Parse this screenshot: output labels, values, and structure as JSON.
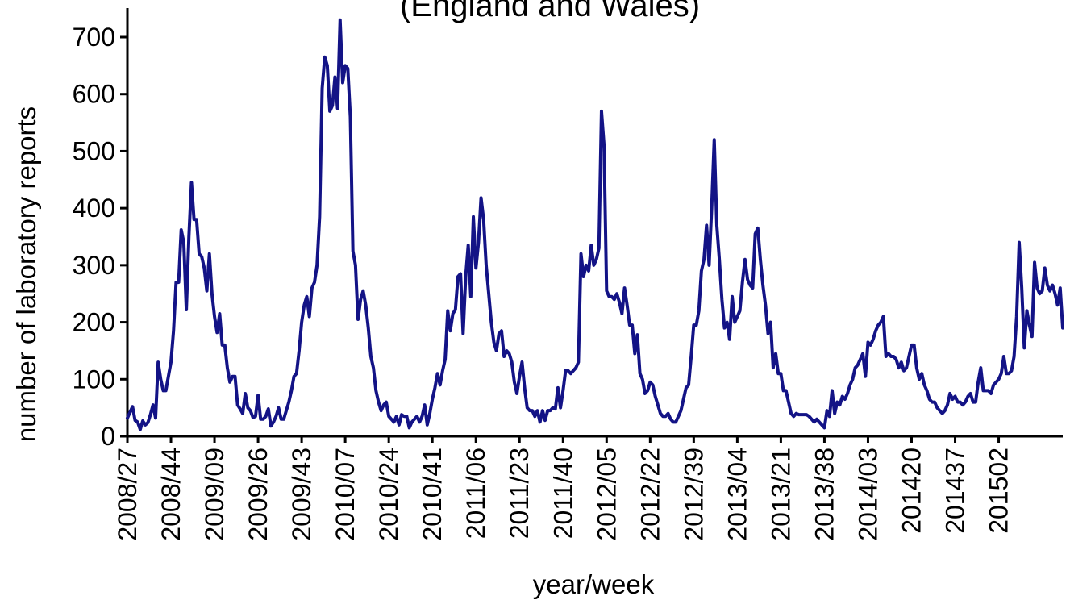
{
  "chart_data": {
    "type": "line",
    "title": "(England and Wales)",
    "xlabel": "year/week",
    "ylabel": "number of laboratory reports",
    "ylim": [
      0,
      740
    ],
    "yticks": [
      0,
      100,
      200,
      300,
      400,
      500,
      600,
      700
    ],
    "xtick_labels": [
      "2008/27",
      "2008/44",
      "2009/09",
      "2009/26",
      "2009/43",
      "2010/07",
      "2010/24",
      "2010/41",
      "2011/06",
      "2011/23",
      "2011/40",
      "2012/05",
      "2012/22",
      "2012/39",
      "2013/04",
      "2013/21",
      "2013/38",
      "2014/03",
      "201420",
      "201437",
      "201502"
    ],
    "week_interval_between_ticks": 17,
    "grid": false,
    "legend": "none",
    "line_color": "#131386",
    "series": [
      {
        "values": [
          32,
          42,
          52,
          28,
          25,
          12,
          27,
          20,
          24,
          38,
          55,
          32,
          130,
          100,
          80,
          80,
          105,
          130,
          185,
          270,
          270,
          362,
          340,
          222,
          350,
          445,
          380,
          380,
          320,
          315,
          295,
          255,
          320,
          250,
          210,
          182,
          215,
          160,
          160,
          120,
          95,
          105,
          105,
          55,
          48,
          40,
          75,
          50,
          45,
          33,
          35,
          72,
          30,
          30,
          35,
          48,
          18,
          25,
          35,
          50,
          30,
          30,
          45,
          60,
          80,
          105,
          110,
          150,
          200,
          230,
          245,
          210,
          260,
          270,
          300,
          385,
          610,
          665,
          650,
          570,
          580,
          630,
          575,
          730,
          620,
          650,
          645,
          560,
          325,
          300,
          205,
          240,
          255,
          230,
          190,
          140,
          120,
          80,
          60,
          45,
          55,
          60,
          35,
          30,
          25,
          35,
          20,
          38,
          35,
          35,
          15,
          25,
          30,
          35,
          25,
          35,
          55,
          20,
          40,
          65,
          85,
          110,
          90,
          115,
          135,
          220,
          185,
          215,
          222,
          280,
          285,
          180,
          280,
          335,
          245,
          385,
          295,
          340,
          418,
          380,
          300,
          250,
          200,
          165,
          150,
          180,
          185,
          140,
          150,
          145,
          130,
          95,
          75,
          105,
          130,
          85,
          50,
          45,
          45,
          35,
          45,
          25,
          45,
          28,
          45,
          45,
          50,
          48,
          85,
          50,
          80,
          115,
          115,
          110,
          115,
          120,
          130,
          320,
          280,
          300,
          290,
          335,
          300,
          310,
          330,
          570,
          510,
          255,
          245,
          245,
          240,
          250,
          235,
          215,
          260,
          230,
          195,
          195,
          145,
          178,
          110,
          100,
          75,
          80,
          95,
          90,
          70,
          55,
          40,
          35,
          35,
          40,
          30,
          25,
          25,
          35,
          45,
          65,
          85,
          90,
          140,
          195,
          195,
          220,
          290,
          310,
          370,
          300,
          400,
          520,
          370,
          310,
          240,
          190,
          200,
          170,
          245,
          200,
          210,
          220,
          270,
          310,
          275,
          265,
          260,
          355,
          365,
          310,
          265,
          230,
          180,
          200,
          120,
          145,
          110,
          110,
          80,
          80,
          60,
          40,
          35,
          40,
          38,
          38,
          38,
          38,
          35,
          30,
          25,
          30,
          25,
          20,
          15,
          45,
          35,
          80,
          40,
          60,
          55,
          70,
          65,
          75,
          90,
          100,
          120,
          125,
          135,
          145,
          105,
          165,
          160,
          170,
          185,
          195,
          200,
          210,
          140,
          145,
          140,
          140,
          135,
          120,
          130,
          115,
          120,
          140,
          160,
          160,
          120,
          100,
          110,
          90,
          80,
          65,
          60,
          60,
          50,
          45,
          40,
          45,
          55,
          75,
          65,
          70,
          60,
          60,
          55,
          60,
          70,
          75,
          60,
          60,
          95,
          120,
          80,
          80,
          80,
          75,
          90,
          95,
          100,
          110,
          140,
          110,
          110,
          115,
          140,
          210,
          340,
          260,
          155,
          220,
          195,
          175,
          305,
          260,
          250,
          255,
          295,
          265,
          255,
          265,
          250,
          230,
          260,
          190
        ]
      }
    ]
  }
}
